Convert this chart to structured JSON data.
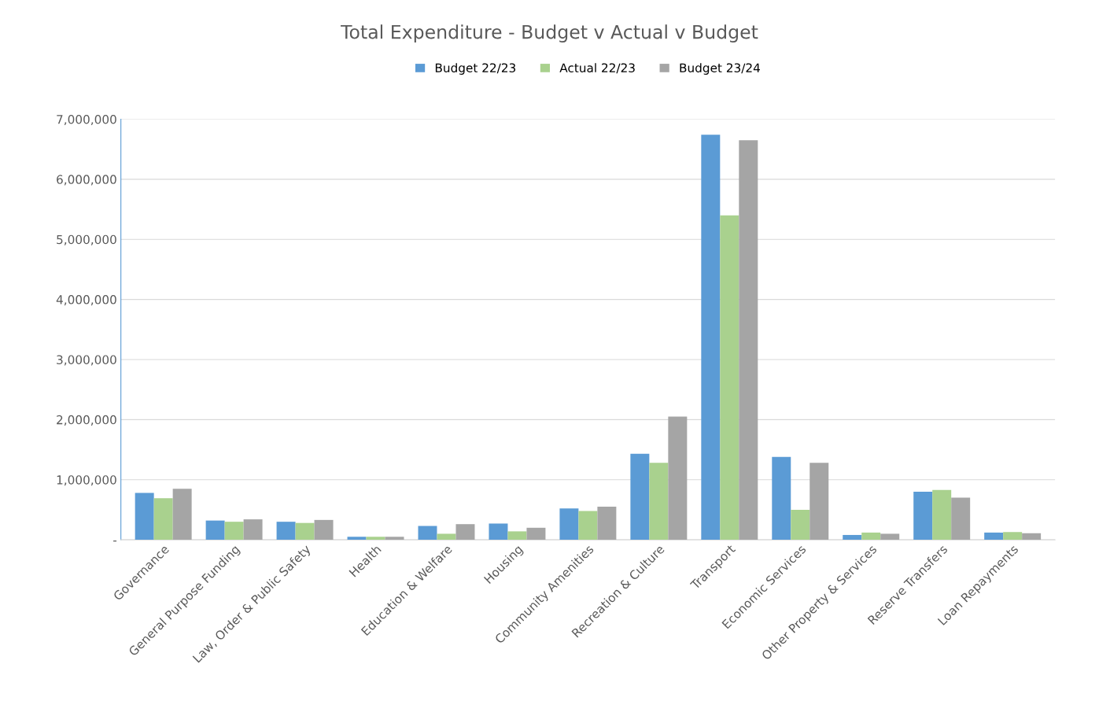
{
  "chart_data": {
    "type": "bar",
    "title": "Total Expenditure - Budget v Actual v Budget",
    "categories": [
      "Governance",
      "General Purpose Funding",
      "Law, Order & Public Safety",
      "Health",
      "Education & Welfare",
      "Housing",
      "Community Amenities",
      "Recreation & Culture",
      "Transport",
      "Economic Services",
      "Other Property & Services",
      "Reserve Transfers",
      "Loan Repayments"
    ],
    "series": [
      {
        "name": "Budget 22/23",
        "color": "#5b9bd5",
        "values": [
          780000,
          320000,
          300000,
          50000,
          230000,
          270000,
          520000,
          1430000,
          6740000,
          1380000,
          80000,
          800000,
          120000
        ]
      },
      {
        "name": "Actual 22/23",
        "color": "#a9d18e",
        "values": [
          690000,
          300000,
          280000,
          50000,
          100000,
          140000,
          480000,
          1280000,
          5400000,
          500000,
          120000,
          830000,
          130000
        ]
      },
      {
        "name": "Budget 23/24",
        "color": "#a5a5a5",
        "values": [
          850000,
          340000,
          330000,
          50000,
          260000,
          200000,
          550000,
          2050000,
          6650000,
          1280000,
          100000,
          700000,
          110000
        ]
      }
    ],
    "ylim": [
      0,
      7000000
    ],
    "yticks": [
      {
        "value": 0,
        "label": "-"
      },
      {
        "value": 1000000,
        "label": "1,000,000"
      },
      {
        "value": 2000000,
        "label": "2,000,000"
      },
      {
        "value": 3000000,
        "label": "3,000,000"
      },
      {
        "value": 4000000,
        "label": "4,000,000"
      },
      {
        "value": 5000000,
        "label": "5,000,000"
      },
      {
        "value": 6000000,
        "label": "6,000,000"
      },
      {
        "value": 7000000,
        "label": "7,000,000"
      }
    ],
    "grid": "y",
    "legend": "top"
  }
}
